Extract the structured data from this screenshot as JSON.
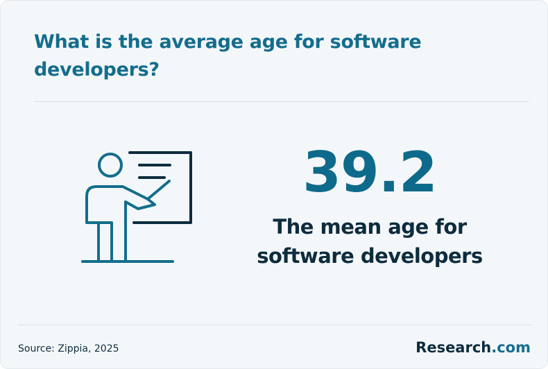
{
  "header": {
    "title": "What is the average age for software developers?"
  },
  "stat": {
    "value": "39.2",
    "caption": "The mean age for software developers"
  },
  "footer": {
    "source": "Source: Zippia, 2025",
    "brand": {
      "name": "Research",
      "suffix": ".com"
    }
  }
}
